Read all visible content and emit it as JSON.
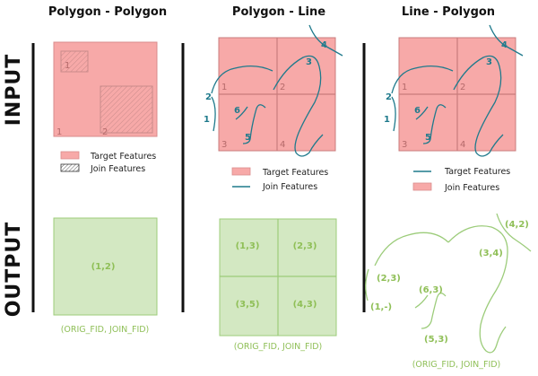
{
  "columns": {
    "col1_title": "Polygon - Polygon",
    "col2_title": "Polygon - Line",
    "col3_title": "Line - Polygon"
  },
  "side_labels": {
    "input": "INPUT",
    "output": "OUTPUT"
  },
  "polygon_polygon": {
    "feature_labels": [
      "1",
      "1",
      "2"
    ],
    "legend": [
      "Target Features",
      "Join Features"
    ],
    "output_label": "(1,2)",
    "output_caption": "(ORIG_FID, JOIN_FID)"
  },
  "polygon_line": {
    "cell_labels": [
      "1",
      "2",
      "3",
      "4"
    ],
    "line_labels": [
      "1",
      "2",
      "3",
      "4",
      "5",
      "6"
    ],
    "legend": [
      "Target Features",
      "Join Features"
    ],
    "output_cells": [
      "(1,3)",
      "(2,3)",
      "(3,5)",
      "(4,3)"
    ],
    "output_caption": "(ORIG_FID, JOIN_FID)"
  },
  "line_polygon": {
    "cell_labels": [
      "1",
      "2",
      "3",
      "4"
    ],
    "line_labels": [
      "1",
      "2",
      "3",
      "4",
      "5",
      "6"
    ],
    "legend": [
      "Target Features",
      "Join Features"
    ],
    "output_labels": [
      "(4,2)",
      "(3,4)",
      "(2,3)",
      "(6,3)",
      "(1,-)",
      "(5,3)"
    ],
    "output_caption": "(ORIG_FID, JOIN_FID)"
  },
  "colors": {
    "pink_fill": "#f7a9a8",
    "pink_stroke": "#d98c8c",
    "teal_line": "#1f7a8c",
    "green_fill": "#d3e8c2",
    "green_stroke": "#9ccc7a",
    "green_text": "#8fbf57"
  }
}
